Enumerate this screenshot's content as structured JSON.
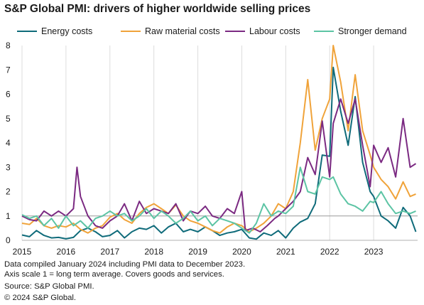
{
  "title": "S&P Global PMI: drivers of higher worldwide  selling prices",
  "footnotes": {
    "line1": "Data compiled January 2024 including PMI data to December 2023.",
    "line2": "Axis scale 1 = long term average. Covers goods and services.",
    "source": "Source: S&P Global PMI.",
    "copyright": "© 2024 S&P Global."
  },
  "chart_data": {
    "type": "line",
    "title": "S&P Global PMI: drivers of higher worldwide  selling prices",
    "xlabel": "",
    "ylabel": "",
    "xlim": [
      2015.0,
      2024.0
    ],
    "ylim": [
      0,
      8
    ],
    "yticks": [
      "0",
      "1",
      "2",
      "3",
      "4",
      "5",
      "6",
      "7",
      "8"
    ],
    "xticks": [
      {
        "value": 2015,
        "label": "2015"
      },
      {
        "value": 2016,
        "label": "2016"
      },
      {
        "value": 2017,
        "label": "2017"
      },
      {
        "value": 2018,
        "label": "2018"
      },
      {
        "value": 2019,
        "label": "2019"
      },
      {
        "value": 2020,
        "label": "2020"
      },
      {
        "value": 2021,
        "label": "2021"
      },
      {
        "value": 2022,
        "label": "2022"
      },
      {
        "value": 2023,
        "label": "2023"
      }
    ],
    "reference_line": 1,
    "grid": "vertical at years",
    "legend_position": "top",
    "series": [
      {
        "name": "Energy costs",
        "color": "#0f6b7a",
        "points": [
          [
            2015.0,
            0.22
          ],
          [
            2015.17,
            0.15
          ],
          [
            2015.33,
            0.4
          ],
          [
            2015.5,
            0.2
          ],
          [
            2015.67,
            0.1
          ],
          [
            2015.83,
            0.12
          ],
          [
            2016.0,
            0.06
          ],
          [
            2016.17,
            0.12
          ],
          [
            2016.33,
            0.4
          ],
          [
            2016.5,
            0.5
          ],
          [
            2016.67,
            0.35
          ],
          [
            2016.83,
            0.15
          ],
          [
            2017.0,
            0.2
          ],
          [
            2017.17,
            0.4
          ],
          [
            2017.33,
            0.1
          ],
          [
            2017.5,
            0.35
          ],
          [
            2017.67,
            0.5
          ],
          [
            2017.83,
            0.45
          ],
          [
            2018.0,
            0.6
          ],
          [
            2018.17,
            0.3
          ],
          [
            2018.33,
            0.55
          ],
          [
            2018.5,
            0.7
          ],
          [
            2018.67,
            0.35
          ],
          [
            2018.83,
            0.45
          ],
          [
            2019.0,
            0.35
          ],
          [
            2019.17,
            0.55
          ],
          [
            2019.33,
            0.4
          ],
          [
            2019.5,
            0.2
          ],
          [
            2019.67,
            0.3
          ],
          [
            2019.83,
            0.35
          ],
          [
            2020.0,
            0.45
          ],
          [
            2020.17,
            0.1
          ],
          [
            2020.33,
            0.05
          ],
          [
            2020.5,
            0.3
          ],
          [
            2020.67,
            0.2
          ],
          [
            2020.83,
            0.4
          ],
          [
            2021.0,
            0.1
          ],
          [
            2021.17,
            0.5
          ],
          [
            2021.33,
            0.75
          ],
          [
            2021.5,
            0.9
          ],
          [
            2021.67,
            1.5
          ],
          [
            2021.83,
            3.5
          ],
          [
            2022.0,
            3.45
          ],
          [
            2022.08,
            7.1
          ],
          [
            2022.25,
            5.3
          ],
          [
            2022.42,
            3.9
          ],
          [
            2022.58,
            5.9
          ],
          [
            2022.75,
            3.2
          ],
          [
            2022.92,
            2.0
          ],
          [
            2023.0,
            1.8
          ],
          [
            2023.17,
            1.0
          ],
          [
            2023.33,
            0.8
          ],
          [
            2023.5,
            0.5
          ],
          [
            2023.67,
            1.35
          ],
          [
            2023.83,
            1.0
          ],
          [
            2023.96,
            0.35
          ]
        ]
      },
      {
        "name": "Raw material costs",
        "color": "#f0a33a",
        "points": [
          [
            2015.0,
            0.7
          ],
          [
            2015.17,
            0.65
          ],
          [
            2015.33,
            0.9
          ],
          [
            2015.5,
            0.6
          ],
          [
            2015.67,
            0.5
          ],
          [
            2015.83,
            0.6
          ],
          [
            2016.0,
            0.55
          ],
          [
            2016.17,
            0.7
          ],
          [
            2016.33,
            0.45
          ],
          [
            2016.5,
            0.3
          ],
          [
            2016.67,
            0.5
          ],
          [
            2016.83,
            0.6
          ],
          [
            2017.0,
            0.95
          ],
          [
            2017.17,
            1.1
          ],
          [
            2017.33,
            0.85
          ],
          [
            2017.5,
            0.7
          ],
          [
            2017.67,
            1.1
          ],
          [
            2017.83,
            1.35
          ],
          [
            2018.0,
            1.5
          ],
          [
            2018.17,
            1.3
          ],
          [
            2018.33,
            1.1
          ],
          [
            2018.5,
            1.45
          ],
          [
            2018.67,
            1.0
          ],
          [
            2018.83,
            0.8
          ],
          [
            2019.0,
            0.7
          ],
          [
            2019.17,
            0.55
          ],
          [
            2019.33,
            0.4
          ],
          [
            2019.5,
            0.3
          ],
          [
            2019.67,
            0.55
          ],
          [
            2019.83,
            0.7
          ],
          [
            2020.0,
            0.6
          ],
          [
            2020.17,
            0.35
          ],
          [
            2020.33,
            0.5
          ],
          [
            2020.5,
            0.7
          ],
          [
            2020.67,
            1.0
          ],
          [
            2020.83,
            1.5
          ],
          [
            2021.0,
            1.3
          ],
          [
            2021.17,
            2.0
          ],
          [
            2021.33,
            4.0
          ],
          [
            2021.5,
            6.6
          ],
          [
            2021.67,
            3.7
          ],
          [
            2021.83,
            5.0
          ],
          [
            2022.0,
            5.8
          ],
          [
            2022.08,
            8.0
          ],
          [
            2022.25,
            6.5
          ],
          [
            2022.42,
            4.5
          ],
          [
            2022.58,
            6.8
          ],
          [
            2022.75,
            4.5
          ],
          [
            2022.92,
            3.5
          ],
          [
            2023.0,
            3.0
          ],
          [
            2023.17,
            2.5
          ],
          [
            2023.33,
            2.2
          ],
          [
            2023.5,
            1.7
          ],
          [
            2023.67,
            2.4
          ],
          [
            2023.83,
            1.8
          ],
          [
            2023.96,
            1.9
          ]
        ]
      },
      {
        "name": "Labour costs",
        "color": "#7b2a82",
        "points": [
          [
            2015.0,
            1.0
          ],
          [
            2015.17,
            0.85
          ],
          [
            2015.33,
            0.8
          ],
          [
            2015.5,
            1.2
          ],
          [
            2015.67,
            1.0
          ],
          [
            2015.83,
            1.2
          ],
          [
            2016.0,
            1.0
          ],
          [
            2016.17,
            1.3
          ],
          [
            2016.25,
            3.0
          ],
          [
            2016.33,
            1.8
          ],
          [
            2016.5,
            1.0
          ],
          [
            2016.67,
            0.6
          ],
          [
            2016.83,
            0.5
          ],
          [
            2017.0,
            0.8
          ],
          [
            2017.17,
            1.0
          ],
          [
            2017.33,
            1.5
          ],
          [
            2017.5,
            0.8
          ],
          [
            2017.67,
            1.6
          ],
          [
            2017.83,
            1.1
          ],
          [
            2018.0,
            1.3
          ],
          [
            2018.17,
            1.2
          ],
          [
            2018.33,
            1.1
          ],
          [
            2018.5,
            1.5
          ],
          [
            2018.67,
            0.8
          ],
          [
            2018.83,
            1.2
          ],
          [
            2019.0,
            1.1
          ],
          [
            2019.17,
            1.4
          ],
          [
            2019.33,
            1.0
          ],
          [
            2019.5,
            0.9
          ],
          [
            2019.67,
            1.3
          ],
          [
            2019.83,
            1.1
          ],
          [
            2020.0,
            2.0
          ],
          [
            2020.08,
            0.4
          ],
          [
            2020.25,
            0.5
          ],
          [
            2020.42,
            0.35
          ],
          [
            2020.58,
            0.6
          ],
          [
            2020.75,
            0.9
          ],
          [
            2020.83,
            1.0
          ],
          [
            2021.0,
            1.3
          ],
          [
            2021.17,
            1.6
          ],
          [
            2021.33,
            2.0
          ],
          [
            2021.5,
            3.4
          ],
          [
            2021.67,
            2.7
          ],
          [
            2021.83,
            4.9
          ],
          [
            2022.0,
            2.6
          ],
          [
            2022.08,
            4.8
          ],
          [
            2022.25,
            5.8
          ],
          [
            2022.42,
            4.8
          ],
          [
            2022.58,
            5.8
          ],
          [
            2022.75,
            3.9
          ],
          [
            2022.92,
            2.2
          ],
          [
            2023.0,
            3.9
          ],
          [
            2023.17,
            3.2
          ],
          [
            2023.33,
            3.8
          ],
          [
            2023.5,
            2.6
          ],
          [
            2023.67,
            5.0
          ],
          [
            2023.83,
            3.0
          ],
          [
            2023.96,
            3.15
          ]
        ]
      },
      {
        "name": "Stronger demand",
        "color": "#5cc4a4",
        "points": [
          [
            2015.0,
            1.05
          ],
          [
            2015.17,
            0.9
          ],
          [
            2015.33,
            1.0
          ],
          [
            2015.5,
            0.6
          ],
          [
            2015.67,
            0.9
          ],
          [
            2015.83,
            0.5
          ],
          [
            2016.0,
            1.0
          ],
          [
            2016.17,
            0.6
          ],
          [
            2016.33,
            0.8
          ],
          [
            2016.5,
            0.5
          ],
          [
            2016.67,
            0.9
          ],
          [
            2016.83,
            1.0
          ],
          [
            2017.0,
            1.2
          ],
          [
            2017.17,
            1.0
          ],
          [
            2017.33,
            1.1
          ],
          [
            2017.5,
            0.8
          ],
          [
            2017.67,
            1.0
          ],
          [
            2017.83,
            1.3
          ],
          [
            2018.0,
            0.9
          ],
          [
            2018.17,
            1.2
          ],
          [
            2018.33,
            1.0
          ],
          [
            2018.5,
            0.7
          ],
          [
            2018.67,
            0.9
          ],
          [
            2018.83,
            1.2
          ],
          [
            2019.0,
            0.8
          ],
          [
            2019.17,
            1.0
          ],
          [
            2019.33,
            0.6
          ],
          [
            2019.5,
            0.9
          ],
          [
            2019.67,
            0.8
          ],
          [
            2019.83,
            0.7
          ],
          [
            2020.0,
            0.5
          ],
          [
            2020.17,
            0.3
          ],
          [
            2020.33,
            0.7
          ],
          [
            2020.5,
            1.5
          ],
          [
            2020.67,
            1.0
          ],
          [
            2020.83,
            1.2
          ],
          [
            2021.0,
            1.1
          ],
          [
            2021.17,
            1.4
          ],
          [
            2021.33,
            3.0
          ],
          [
            2021.5,
            2.0
          ],
          [
            2021.67,
            1.9
          ],
          [
            2021.83,
            2.6
          ],
          [
            2022.0,
            2.5
          ],
          [
            2022.08,
            2.6
          ],
          [
            2022.25,
            1.9
          ],
          [
            2022.42,
            1.5
          ],
          [
            2022.58,
            1.4
          ],
          [
            2022.75,
            1.2
          ],
          [
            2022.92,
            1.6
          ],
          [
            2023.0,
            1.55
          ],
          [
            2023.17,
            2.0
          ],
          [
            2023.33,
            1.5
          ],
          [
            2023.5,
            1.1
          ],
          [
            2023.67,
            1.2
          ],
          [
            2023.83,
            1.1
          ],
          [
            2023.96,
            1.2
          ]
        ]
      }
    ]
  }
}
